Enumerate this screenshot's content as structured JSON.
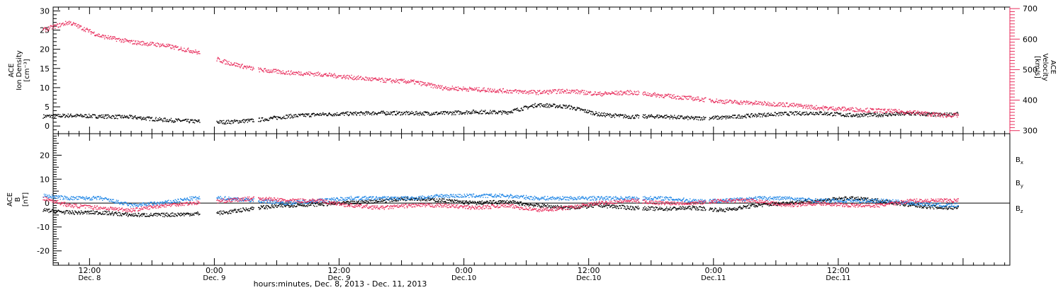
{
  "colors": {
    "density": "#000000",
    "velocity": "#e8315f",
    "bx": "#000000",
    "by": "#1f86e6",
    "bz": "#e8315f"
  },
  "chart_data": [
    {
      "type": "scatter",
      "panel": "top",
      "ylabel_left": [
        "ACE",
        "Ion Density",
        "[cm⁻³]"
      ],
      "ylabel_right": [
        "ACE",
        "Velocity",
        "[km/s]"
      ],
      "ylim": [
        -2,
        31
      ],
      "yticks": [
        0,
        5,
        10,
        15,
        20,
        25,
        30
      ],
      "ylim_right": [
        290,
        705
      ],
      "yticks_right": [
        300,
        400,
        500,
        600,
        700
      ],
      "x_hours": [
        7.5,
        10,
        13,
        16,
        19,
        22,
        25,
        28,
        31,
        34,
        37,
        40,
        43,
        46,
        49,
        52,
        55,
        58,
        61,
        64,
        67,
        70,
        73,
        76,
        79,
        82,
        85,
        88,
        91,
        94,
        95.5
      ],
      "series": [
        {
          "key": "density",
          "values": [
            2.5,
            2.7,
            2.5,
            2.3,
            1.6,
            1.2,
            1.0,
            1.5,
            2.5,
            3.0,
            3.2,
            3.4,
            3.3,
            3.3,
            3.7,
            3.5,
            5.5,
            5.0,
            3.0,
            2.4,
            2.5,
            2.0,
            2.2,
            2.8,
            3.2,
            3.4,
            2.8,
            2.9,
            3.2,
            2.9,
            3.1
          ]
        },
        {
          "key": "velocity",
          "values": [
            630,
            655,
            610,
            590,
            580,
            560,
            525,
            500,
            490,
            485,
            475,
            465,
            460,
            440,
            435,
            430,
            425,
            430,
            420,
            425,
            415,
            405,
            395,
            390,
            385,
            375,
            370,
            365,
            360,
            350,
            350
          ]
        }
      ]
    },
    {
      "type": "line",
      "panel": "bottom",
      "ylabel_left": [
        "ACE",
        "B",
        "[nT]"
      ],
      "ylim": [
        -26,
        29
      ],
      "yticks": [
        -20,
        -10,
        0,
        10,
        20
      ],
      "legend": [
        "Bx",
        "By",
        "Bz"
      ],
      "x_hours": [
        7.5,
        10,
        13,
        16,
        19,
        22,
        25,
        28,
        31,
        34,
        37,
        40,
        43,
        46,
        49,
        52,
        55,
        58,
        61,
        64,
        67,
        70,
        73,
        76,
        79,
        82,
        85,
        88,
        91,
        94,
        95.5
      ],
      "series": [
        {
          "key": "bx",
          "values": [
            -3,
            -4,
            -4,
            -5,
            -5,
            -4.5,
            -4,
            -2,
            -1,
            -0.5,
            0,
            1,
            2,
            1,
            0,
            0.5,
            -1,
            -2,
            -1,
            -2,
            -2.5,
            -2,
            -3,
            -1,
            0,
            1,
            2,
            1,
            -1,
            -2,
            -2
          ]
        },
        {
          "key": "by",
          "values": [
            3,
            2,
            2,
            -1,
            0,
            2,
            2,
            1,
            0,
            1,
            2,
            2,
            2,
            3,
            3,
            3,
            2,
            2,
            2,
            2,
            2,
            1,
            1,
            2,
            2,
            1,
            1,
            1,
            0,
            -1,
            -1
          ]
        },
        {
          "key": "bz",
          "values": [
            2,
            -1,
            -2,
            -3,
            -1,
            0,
            1,
            2,
            1,
            1,
            -1,
            -2,
            -1,
            -1,
            -2,
            -1,
            -3,
            -2,
            0,
            1,
            0,
            0,
            1,
            1,
            -1,
            0,
            -1,
            -1,
            1,
            1,
            1
          ]
        }
      ]
    }
  ],
  "legend_labels": [
    {
      "key": "bx",
      "base": "B",
      "sub": "x"
    },
    {
      "key": "by",
      "base": "B",
      "sub": "y"
    },
    {
      "key": "bz",
      "base": "B",
      "sub": "z"
    }
  ],
  "x_axis": {
    "xlim_hours": [
      8.5,
      100.5
    ],
    "major_hours": [
      12,
      24,
      36,
      48,
      60,
      72,
      84,
      96
    ],
    "tick_labels": [
      {
        "hour": 12,
        "time": "12:00",
        "date": "Dec. 8"
      },
      {
        "hour": 24,
        "time": "0:00",
        "date": "Dec. 9"
      },
      {
        "hour": 36,
        "time": "12:00",
        "date": "Dec. 9"
      },
      {
        "hour": 48,
        "time": "0:00",
        "date": "Dec.10"
      },
      {
        "hour": 60,
        "time": "12:00",
        "date": "Dec.10"
      },
      {
        "hour": 72,
        "time": "0:00",
        "date": "Dec.11"
      },
      {
        "hour": 84,
        "time": "12:00",
        "date": "Dec.11"
      }
    ],
    "xlabel": "hours:minutes, Dec. 8, 2013 - Dec. 11, 2013"
  }
}
